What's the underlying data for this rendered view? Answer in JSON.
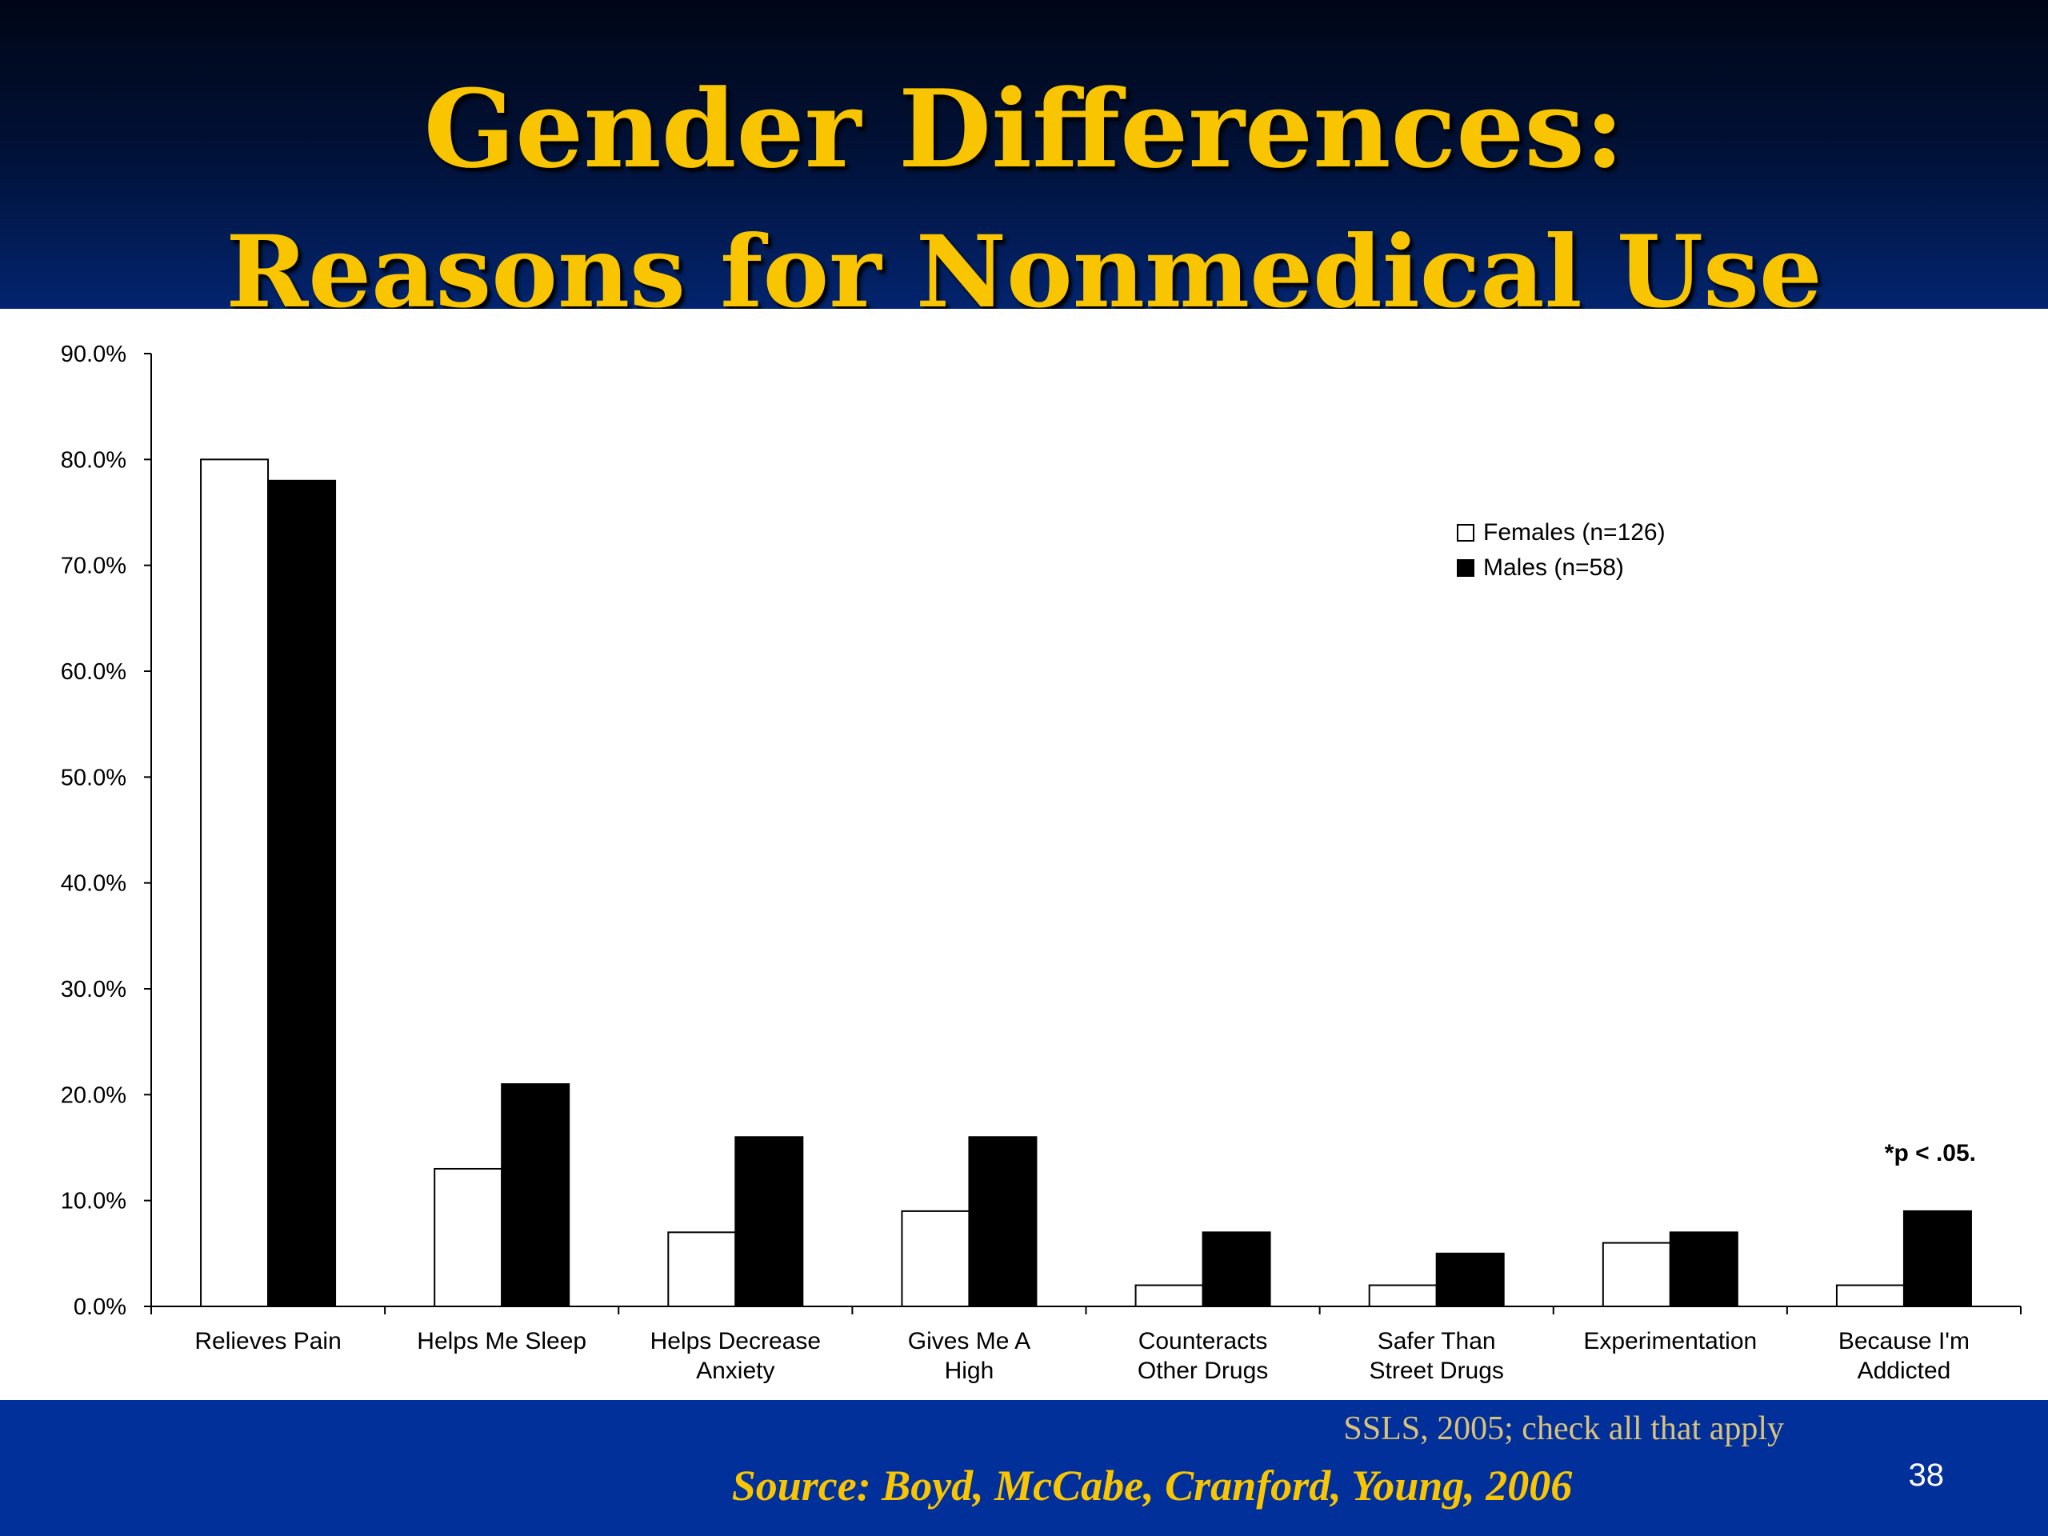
{
  "slide": {
    "title_line1": "Gender Differences:",
    "title_line2": "Reasons for Nonmedical Use",
    "note": "SSLS, 2005; check all that apply",
    "source": "Source: Boyd, McCabe, Cranford, Young, 2006",
    "page_number": "38",
    "colors": {
      "header_dark": "#000616",
      "header_blue": "#02246e",
      "footer": "#02309a",
      "title": "#f8c500"
    }
  },
  "chart_data": {
    "type": "bar",
    "categories": [
      [
        "Relieves Pain"
      ],
      [
        "Helps Me Sleep"
      ],
      [
        "Helps Decrease",
        "Anxiety"
      ],
      [
        "Gives Me A",
        "High"
      ],
      [
        "Counteracts",
        "Other Drugs"
      ],
      [
        "Safer Than",
        "Street Drugs"
      ],
      [
        "Experimentation"
      ],
      [
        "Because I'm",
        "Addicted"
      ]
    ],
    "series": [
      {
        "name": "Females (n=126)",
        "color": "#ffffff",
        "values": [
          80.0,
          13.0,
          7.0,
          9.0,
          2.0,
          2.0,
          6.0,
          2.0
        ]
      },
      {
        "name": "Males (n=58)",
        "color": "#000000",
        "values": [
          78.0,
          21.0,
          16.0,
          16.0,
          7.0,
          5.0,
          7.0,
          9.0
        ]
      }
    ],
    "yticks": [
      "0.0%",
      "10.0%",
      "20.0%",
      "30.0%",
      "40.0%",
      "50.0%",
      "60.0%",
      "70.0%",
      "80.0%",
      "90.0%"
    ],
    "ylim": [
      0,
      90
    ],
    "annotation": "*p < .05.",
    "legend_position": "top-right",
    "grid": false
  }
}
